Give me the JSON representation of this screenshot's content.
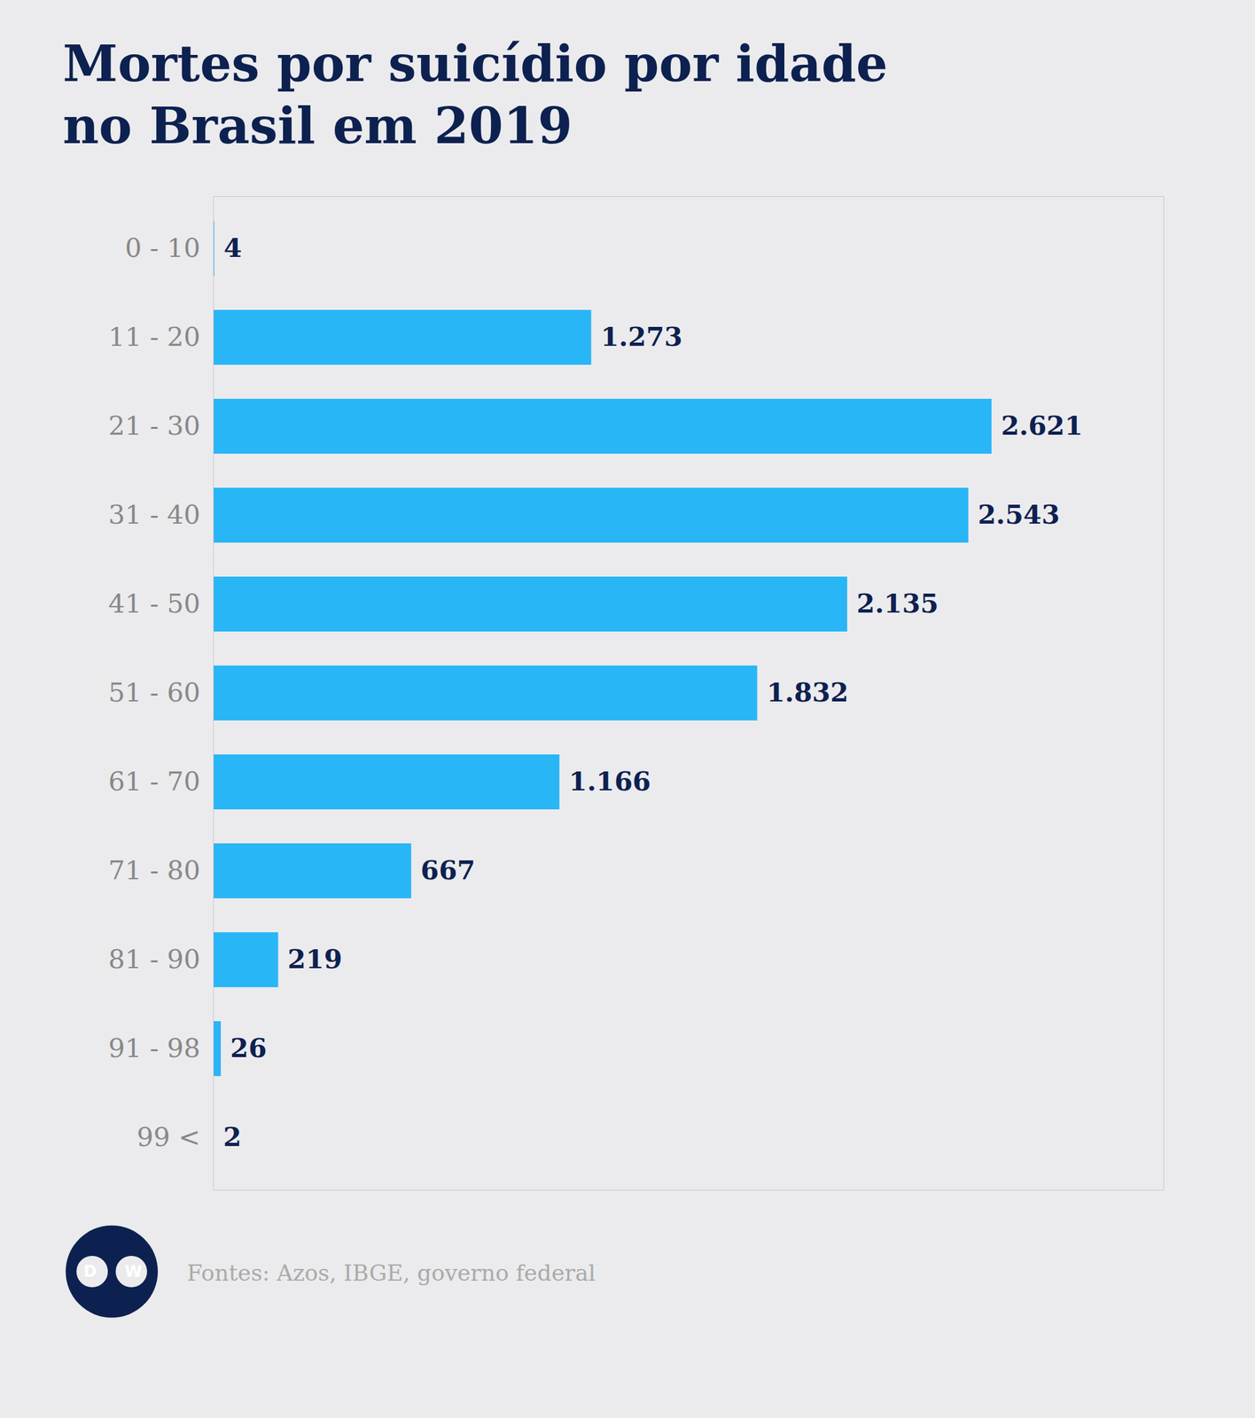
{
  "chart_data": {
    "type": "bar",
    "orientation": "horizontal",
    "title": "Mortes por suicídio por idade\nno Brasil em 2019",
    "categories": [
      "0 - 10",
      "11 - 20",
      "21 - 30",
      "31 - 40",
      "41 - 50",
      "51 - 60",
      "61 - 70",
      "71 - 80",
      "81 - 90",
      "91 - 98",
      "99 <"
    ],
    "values": [
      4,
      1273,
      2621,
      2543,
      2135,
      1832,
      1166,
      667,
      219,
      26,
      2
    ],
    "value_labels": [
      "4",
      "1.273",
      "2.621",
      "2.543",
      "2.135",
      "1.832",
      "1.166",
      "667",
      "219",
      "26",
      "2"
    ],
    "data_labels": true,
    "color": "#29b6f6",
    "xlim": [
      0,
      3200
    ],
    "grid": false,
    "tick_labels": "y",
    "annotations": [
      "Fontes: Azos, IBGE, governo federal"
    ],
    "logo": [
      "D",
      "W"
    ]
  }
}
